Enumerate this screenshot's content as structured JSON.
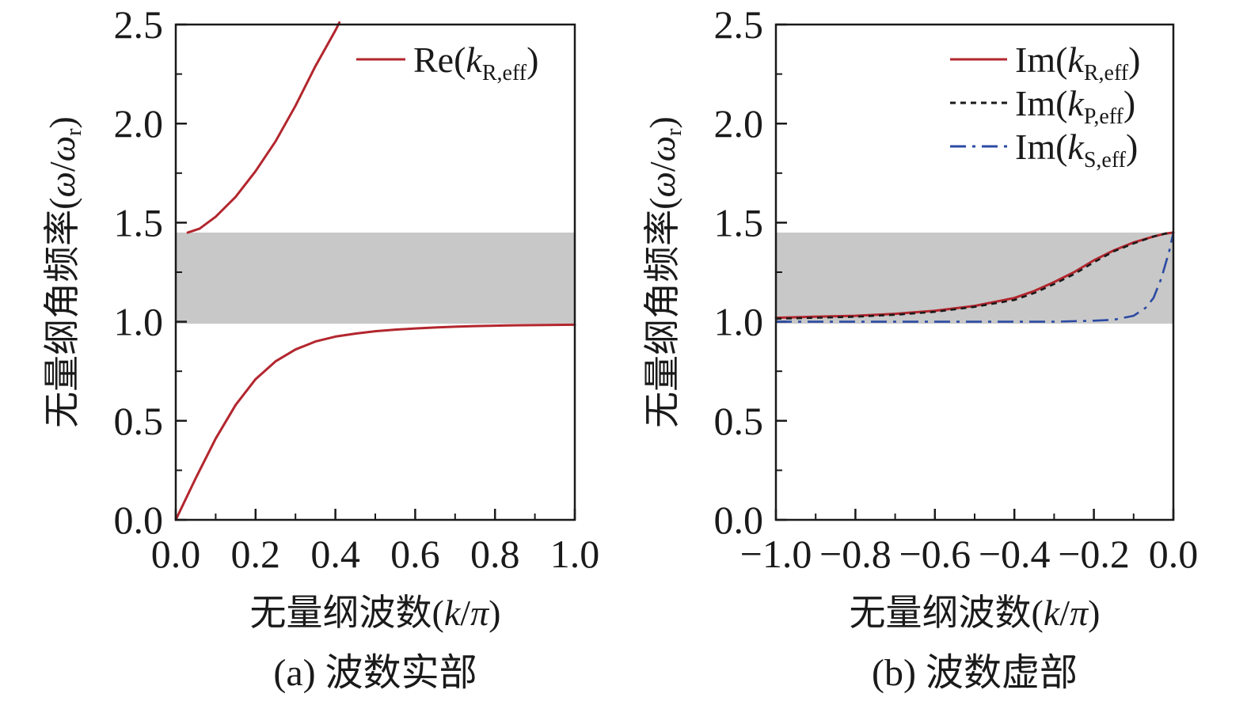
{
  "chart_data": [
    {
      "type": "line",
      "caption": "(a) 波数实部",
      "xlabel_text": "无量纲波数(",
      "xlabel_var": "k",
      "xlabel_sep": "/",
      "xlabel_pi": "π",
      "xlabel_close": ")",
      "ylabel_text": "无量纲角频率(",
      "ylabel_var": "ω",
      "ylabel_sep": "/",
      "ylabel_var2": "ω",
      "ylabel_sub": "r",
      "ylabel_close": ")",
      "xlim": [
        0.0,
        1.0
      ],
      "ylim": [
        0.0,
        2.5
      ],
      "xticks": [
        "0.0",
        "0.2",
        "0.4",
        "0.6",
        "0.8",
        "1.0"
      ],
      "yticks": [
        "0.0",
        "0.5",
        "1.0",
        "1.5",
        "2.0",
        "2.5"
      ],
      "band_gap": [
        0.99,
        1.45
      ],
      "legend_position": "top-right",
      "series": [
        {
          "name_prefix": "Re(",
          "name_var": "k",
          "name_sub": "R,eff",
          "name_suffix": ")",
          "style": "solid",
          "color": "#b3262e",
          "branches": [
            {
              "x": [
                0.0,
                0.05,
                0.1,
                0.15,
                0.2,
                0.25,
                0.3,
                0.35,
                0.4,
                0.45,
                0.5,
                0.55,
                0.6,
                0.65,
                0.7,
                0.75,
                0.8,
                0.85,
                0.9,
                0.95,
                1.0
              ],
              "y": [
                0.0,
                0.21,
                0.41,
                0.58,
                0.71,
                0.8,
                0.86,
                0.9,
                0.925,
                0.94,
                0.952,
                0.96,
                0.966,
                0.971,
                0.975,
                0.978,
                0.98,
                0.982,
                0.983,
                0.984,
                0.985
              ]
            },
            {
              "x": [
                0.03,
                0.06,
                0.1,
                0.15,
                0.2,
                0.25,
                0.3,
                0.35,
                0.4,
                0.41
              ],
              "y": [
                1.45,
                1.47,
                1.53,
                1.63,
                1.76,
                1.91,
                2.09,
                2.29,
                2.47,
                2.51
              ]
            }
          ]
        }
      ]
    },
    {
      "type": "line",
      "caption": "(b) 波数虚部",
      "xlabel_text": "无量纲波数(",
      "xlabel_var": "k",
      "xlabel_sep": "/",
      "xlabel_pi": "π",
      "xlabel_close": ")",
      "ylabel_text": "无量纲角频率(",
      "ylabel_var": "ω",
      "ylabel_sep": "/",
      "ylabel_var2": "ω",
      "ylabel_sub": "r",
      "ylabel_close": ")",
      "xlim": [
        -1.0,
        0.0
      ],
      "ylim": [
        0.0,
        2.5
      ],
      "xticks": [
        "−1.0",
        "−0.8",
        "−0.6",
        "−0.4",
        "−0.2",
        "0.0"
      ],
      "yticks": [
        "0.0",
        "0.5",
        "1.0",
        "1.5",
        "2.0",
        "2.5"
      ],
      "band_gap": [
        0.99,
        1.45
      ],
      "legend_position": "top-right",
      "series": [
        {
          "name_prefix": "Im(",
          "name_var": "k",
          "name_sub": "R,eff",
          "name_suffix": ")",
          "style": "solid",
          "color": "#b3262e",
          "x": [
            -1.0,
            -0.9,
            -0.8,
            -0.7,
            -0.6,
            -0.5,
            -0.4,
            -0.35,
            -0.3,
            -0.25,
            -0.2,
            -0.15,
            -0.1,
            -0.05,
            -0.02,
            0.0
          ],
          "y": [
            1.02,
            1.025,
            1.03,
            1.04,
            1.055,
            1.08,
            1.12,
            1.155,
            1.2,
            1.25,
            1.31,
            1.36,
            1.4,
            1.43,
            1.445,
            1.45
          ]
        },
        {
          "name_prefix": "Im(",
          "name_var": "k",
          "name_sub": "P,eff",
          "name_suffix": ")",
          "style": "dotted",
          "color": "#1a1a1a",
          "x": [
            -1.0,
            -0.9,
            -0.8,
            -0.7,
            -0.6,
            -0.5,
            -0.4,
            -0.35,
            -0.3,
            -0.25,
            -0.2,
            -0.15,
            -0.1,
            -0.05,
            -0.02,
            0.0
          ],
          "y": [
            1.015,
            1.02,
            1.025,
            1.035,
            1.05,
            1.075,
            1.11,
            1.145,
            1.19,
            1.24,
            1.3,
            1.355,
            1.395,
            1.43,
            1.445,
            1.45
          ]
        },
        {
          "name_prefix": "Im(",
          "name_var": "k",
          "name_sub": "S,eff",
          "name_suffix": ")",
          "style": "dashdot",
          "color": "#2b4aa3",
          "x": [
            -1.0,
            -0.9,
            -0.8,
            -0.7,
            -0.6,
            -0.5,
            -0.4,
            -0.3,
            -0.2,
            -0.15,
            -0.1,
            -0.07,
            -0.05,
            -0.03,
            -0.01,
            0.0
          ],
          "y": [
            1.0,
            1.0,
            1.0,
            1.0,
            1.0,
            1.0,
            1.0,
            1.0,
            1.005,
            1.01,
            1.03,
            1.07,
            1.12,
            1.22,
            1.36,
            1.45
          ]
        }
      ]
    }
  ],
  "colors": {
    "band": "#c8c8c8",
    "axis": "#1a1a1a"
  }
}
